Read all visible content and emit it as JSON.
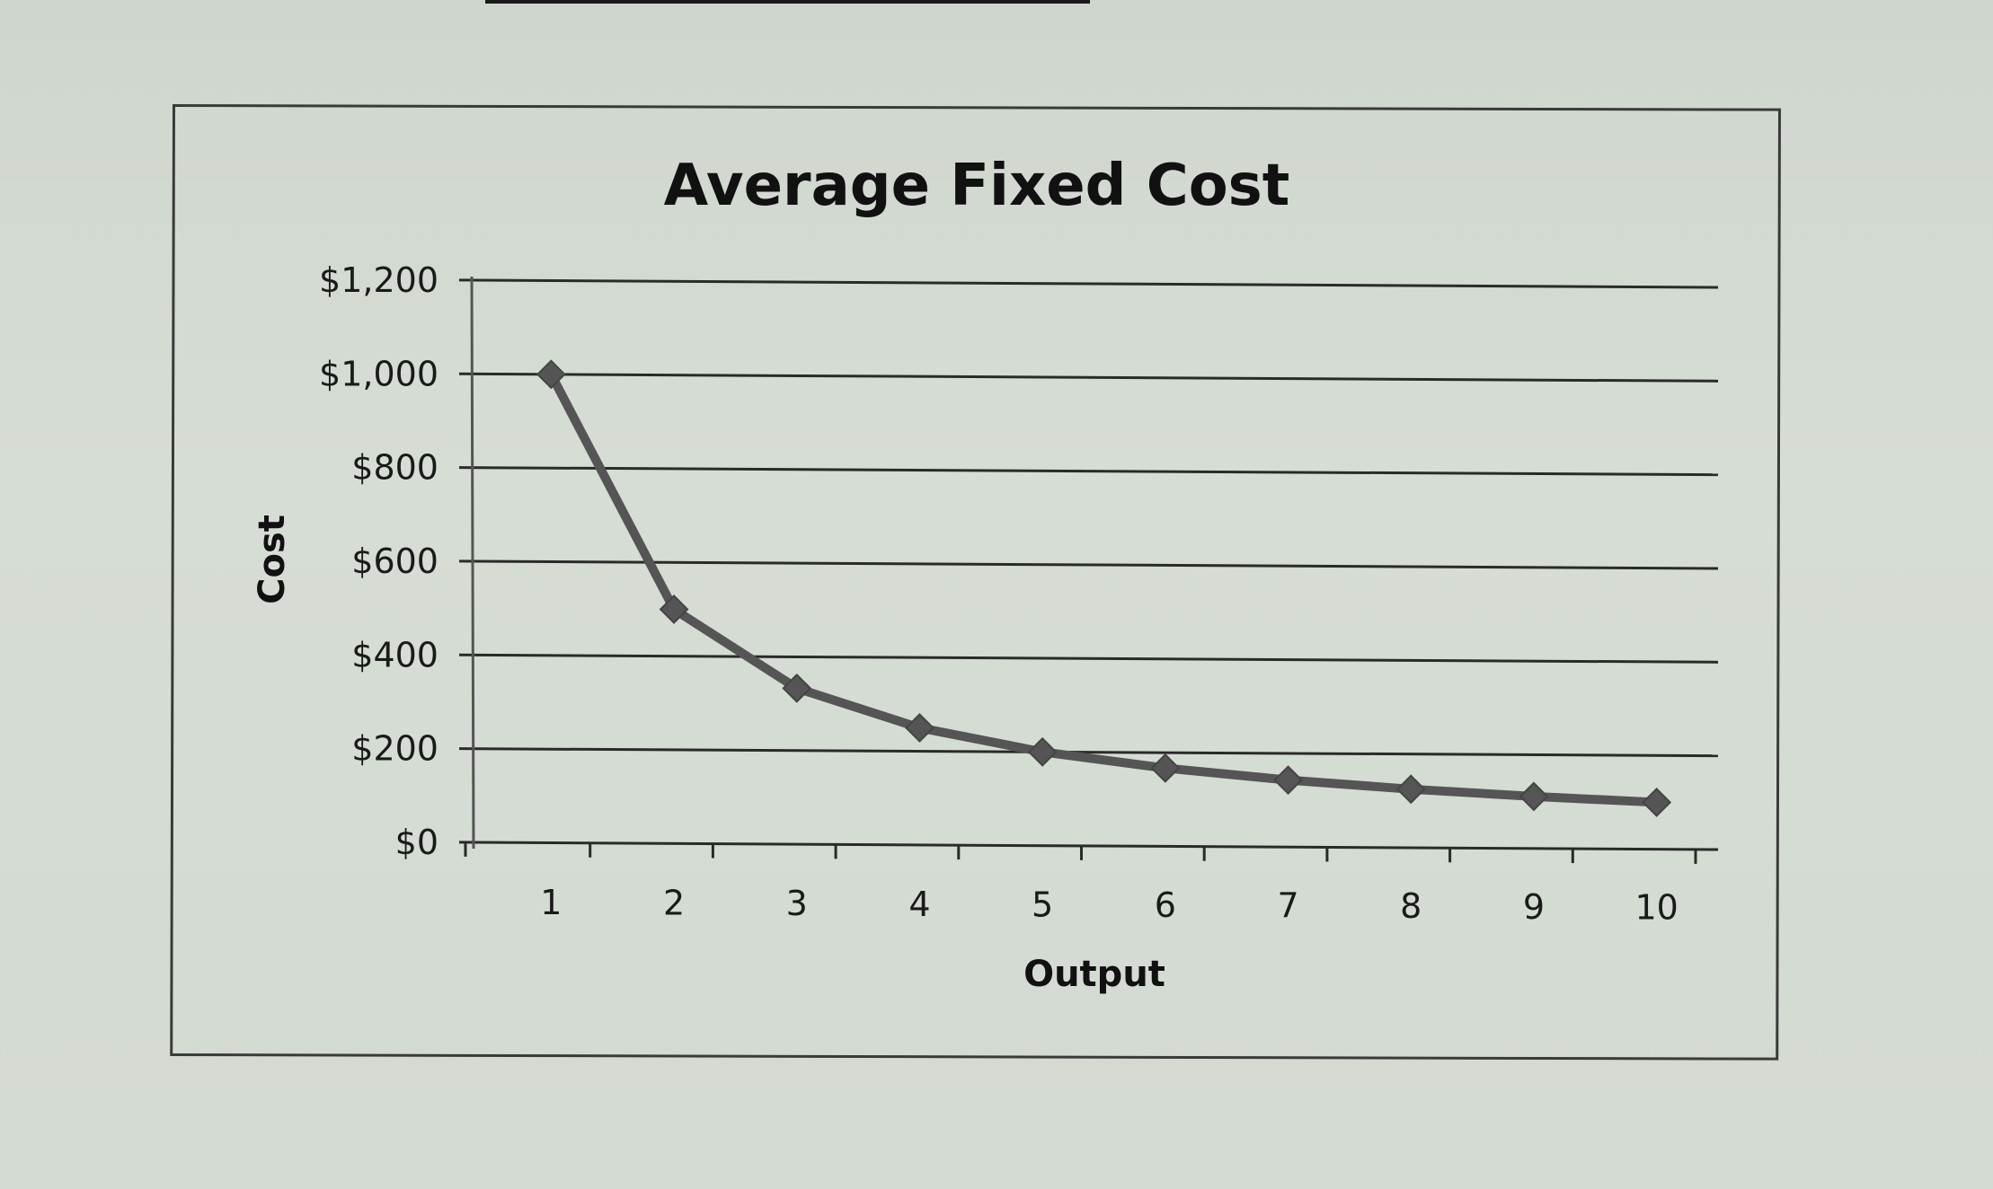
{
  "chart_data": {
    "type": "line",
    "title": "Average Fixed Cost",
    "xlabel": "Output",
    "ylabel": "Cost",
    "categories": [
      "1",
      "2",
      "3",
      "4",
      "5",
      "6",
      "7",
      "8",
      "9",
      "10"
    ],
    "series": [
      {
        "name": "Average Fixed Cost",
        "values": [
          1000,
          500,
          333,
          250,
          200,
          167,
          143,
          125,
          111,
          100
        ],
        "marker": "diamond",
        "color": "#555555"
      }
    ],
    "y_ticks": [
      "$0",
      "$200",
      "$400",
      "$600",
      "$800",
      "$1,000",
      "$1,200"
    ],
    "y_tick_values": [
      0,
      200,
      400,
      600,
      800,
      1000,
      1200
    ],
    "ylim": [
      0,
      1200
    ],
    "grid": true,
    "legend": "none"
  },
  "colors": {
    "paper": "#d4dbd3",
    "line": "#555555",
    "grid": "#2a2a2a",
    "text": "#111111"
  }
}
